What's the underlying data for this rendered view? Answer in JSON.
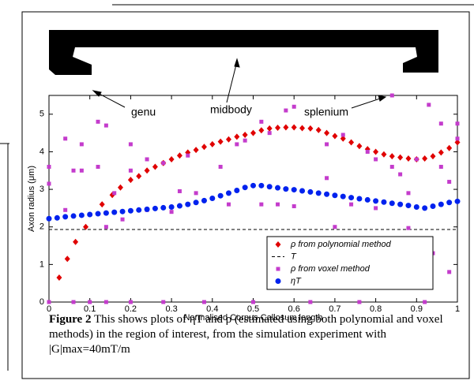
{
  "anatomy": {
    "labels": [
      "genu",
      "midbody",
      "splenium"
    ]
  },
  "caption": {
    "label": "Figure 2",
    "text": "This shows plots of ηT and ρ (estimated using both polynomial and voxel methods) in the region of interest, from the simulation experiment with |G|max=40mT/m"
  },
  "chart_data": {
    "type": "scatter",
    "xlabel": "Normalised Corpus Callosum length",
    "ylabel": "Axon radius (μm)",
    "xlim": [
      0,
      1
    ],
    "ylim": [
      0,
      5.5
    ],
    "xticks": [
      0,
      0.1,
      0.2,
      0.3,
      0.4,
      0.5,
      0.6,
      0.7,
      0.8,
      0.9,
      1
    ],
    "yticks": [
      0,
      1,
      2,
      3,
      4,
      5
    ],
    "legend": "lower right",
    "series": [
      {
        "name": "ρ from polynomial method",
        "color": "#e00000",
        "marker": "diamond",
        "x": [
          0.025,
          0.045,
          0.065,
          0.09,
          0.13,
          0.155,
          0.175,
          0.2,
          0.22,
          0.24,
          0.26,
          0.28,
          0.3,
          0.32,
          0.34,
          0.36,
          0.38,
          0.4,
          0.42,
          0.44,
          0.46,
          0.48,
          0.5,
          0.52,
          0.54,
          0.56,
          0.58,
          0.6,
          0.62,
          0.64,
          0.66,
          0.68,
          0.7,
          0.72,
          0.74,
          0.76,
          0.78,
          0.8,
          0.82,
          0.84,
          0.86,
          0.88,
          0.9,
          0.92,
          0.94,
          0.96,
          0.98,
          1
        ],
        "values": [
          0.65,
          1.15,
          1.6,
          2.0,
          2.6,
          2.85,
          3.05,
          3.25,
          3.35,
          3.5,
          3.6,
          3.7,
          3.8,
          3.9,
          3.98,
          4.05,
          4.13,
          4.2,
          4.27,
          4.33,
          4.4,
          4.45,
          4.5,
          4.57,
          4.62,
          4.64,
          4.65,
          4.65,
          4.63,
          4.62,
          4.58,
          4.5,
          4.42,
          4.35,
          4.25,
          4.15,
          4.07,
          4.0,
          3.93,
          3.88,
          3.85,
          3.82,
          3.8,
          3.82,
          3.88,
          3.98,
          4.1,
          4.25
        ]
      },
      {
        "name": "T",
        "color": "#000000",
        "marker": "dashed-line",
        "x": [
          0,
          1
        ],
        "values": [
          1.93,
          1.93
        ]
      },
      {
        "name": "ρ from voxel method",
        "color": "#c43ccc",
        "marker": "square",
        "x": [
          0,
          0,
          0,
          0.04,
          0.04,
          0.06,
          0.06,
          0.08,
          0.08,
          0.1,
          0.12,
          0.12,
          0.14,
          0.14,
          0.14,
          0.16,
          0.18,
          0.2,
          0.2,
          0.2,
          0.24,
          0.24,
          0.28,
          0.28,
          0.3,
          0.32,
          0.34,
          0.36,
          0.38,
          0.42,
          0.44,
          0.46,
          0.48,
          0.5,
          0.52,
          0.52,
          0.54,
          0.56,
          0.58,
          0.6,
          0.6,
          0.64,
          0.68,
          0.68,
          0.7,
          0.72,
          0.74,
          0.76,
          0.78,
          0.8,
          0.8,
          0.84,
          0.84,
          0.86,
          0.88,
          0.88,
          0.9,
          0.92,
          0.93,
          0.94,
          0.96,
          0.96,
          0.98,
          0.98,
          1,
          1
        ],
        "values": [
          3.6,
          3.15,
          0,
          4.35,
          2.45,
          3.5,
          0,
          3.5,
          4.2,
          0,
          4.8,
          3.6,
          4.7,
          2.0,
          0,
          2.9,
          2.2,
          3.5,
          0,
          4.2,
          3.8,
          2.45,
          3.7,
          0,
          2.4,
          2.95,
          3.9,
          2.9,
          0,
          3.6,
          2.6,
          4.2,
          4.3,
          0,
          2.6,
          4.8,
          4.5,
          2.6,
          5.1,
          5.2,
          2.55,
          0,
          4.2,
          3.3,
          2.0,
          4.45,
          2.6,
          0,
          4.0,
          2.5,
          3.8,
          3.6,
          5.5,
          3.4,
          1.97,
          2.9,
          3.8,
          0,
          5.25,
          1.3,
          4.75,
          3.6,
          0.8,
          3.2,
          4.75,
          4.35
        ]
      },
      {
        "name": "ηT",
        "color": "#0022ee",
        "marker": "circle",
        "x": [
          0,
          0.02,
          0.04,
          0.06,
          0.08,
          0.1,
          0.12,
          0.14,
          0.16,
          0.18,
          0.2,
          0.22,
          0.24,
          0.26,
          0.28,
          0.3,
          0.32,
          0.34,
          0.36,
          0.38,
          0.4,
          0.42,
          0.44,
          0.46,
          0.48,
          0.5,
          0.52,
          0.54,
          0.56,
          0.58,
          0.6,
          0.62,
          0.64,
          0.66,
          0.68,
          0.7,
          0.72,
          0.74,
          0.76,
          0.78,
          0.8,
          0.82,
          0.84,
          0.86,
          0.88,
          0.9,
          0.92,
          0.94,
          0.96,
          0.98,
          1
        ],
        "values": [
          2.22,
          2.24,
          2.27,
          2.29,
          2.31,
          2.33,
          2.35,
          2.37,
          2.39,
          2.41,
          2.43,
          2.45,
          2.47,
          2.49,
          2.51,
          2.53,
          2.56,
          2.6,
          2.65,
          2.7,
          2.76,
          2.83,
          2.9,
          2.97,
          3.05,
          3.1,
          3.1,
          3.07,
          3.04,
          3.01,
          2.99,
          2.96,
          2.93,
          2.9,
          2.87,
          2.84,
          2.81,
          2.78,
          2.75,
          2.72,
          2.69,
          2.66,
          2.63,
          2.6,
          2.57,
          2.53,
          2.5,
          2.55,
          2.6,
          2.65,
          2.68
        ]
      }
    ]
  }
}
